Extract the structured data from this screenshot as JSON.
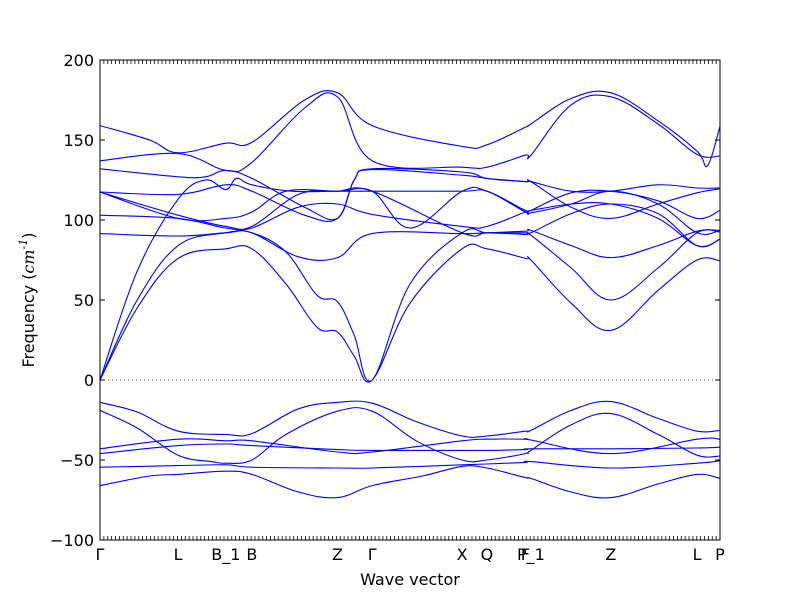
{
  "chart_data": {
    "type": "line",
    "title": "",
    "xlabel": "Wave vector",
    "ylabel": "Frequency ($cm^{-1}$)",
    "ylim": [
      -100,
      200
    ],
    "yticks": [
      -100,
      -50,
      0,
      50,
      100,
      150,
      200
    ],
    "grid": false,
    "legend": "none",
    "line_color": "#0000ff",
    "zero_line": {
      "y": 0,
      "style": "dotted",
      "color": "#555555"
    },
    "kpath": [
      {
        "label": "Γ",
        "dist": 0.0
      },
      {
        "label": "L",
        "dist": 1.26
      },
      {
        "label": "B_1",
        "dist": 2.03
      },
      {
        "label": "B",
        "dist": 2.45
      },
      {
        "label": "Z",
        "dist": 3.83
      },
      {
        "label": "Γ",
        "dist": 4.39
      },
      {
        "label": "X",
        "dist": 5.84
      },
      {
        "label": "Q",
        "dist": 6.24
      },
      {
        "label": "F",
        "dist": 6.86
      },
      {
        "label": "P_1",
        "dist": 6.95
      },
      {
        "label": "Z",
        "dist": 8.24
      },
      {
        "label": "L",
        "dist": 9.63
      },
      {
        "label": "P",
        "dist": 10.0
      }
    ],
    "series": [
      {
        "points": [
          [
            0,
            -66
          ],
          [
            0.8,
            -60
          ],
          [
            1.26,
            -59
          ],
          [
            2.03,
            -57
          ],
          [
            2.45,
            -59
          ],
          [
            3.2,
            -70
          ],
          [
            3.83,
            -73.5
          ],
          [
            4.39,
            -66
          ],
          [
            5.2,
            -60
          ],
          [
            5.84,
            -54
          ],
          [
            6.24,
            -55
          ],
          [
            6.86,
            -61
          ],
          [
            6.95,
            -61.5
          ],
          [
            7.6,
            -70
          ],
          [
            8.24,
            -73.5
          ],
          [
            9.0,
            -65
          ],
          [
            9.63,
            -59
          ],
          [
            10.0,
            -61.5
          ]
        ]
      },
      {
        "points": [
          [
            0,
            -54.5
          ],
          [
            1.26,
            -53.5
          ],
          [
            2.03,
            -53
          ],
          [
            2.45,
            -54.5
          ],
          [
            3.83,
            -55
          ],
          [
            4.39,
            -55
          ],
          [
            5.84,
            -53
          ],
          [
            6.24,
            -52.5
          ],
          [
            6.86,
            -51.5
          ],
          [
            6.95,
            -51
          ],
          [
            8.24,
            -55
          ],
          [
            9.63,
            -52
          ],
          [
            10.0,
            -50.5
          ]
        ]
      },
      {
        "points": [
          [
            0,
            -46
          ],
          [
            1.26,
            -41
          ],
          [
            2.03,
            -40
          ],
          [
            2.45,
            -41
          ],
          [
            3.83,
            -43.5
          ],
          [
            4.39,
            -44
          ],
          [
            5.84,
            -44
          ],
          [
            6.24,
            -44
          ],
          [
            6.86,
            -43.5
          ],
          [
            6.95,
            -43
          ],
          [
            8.24,
            -43
          ],
          [
            9.63,
            -42.5
          ],
          [
            10.0,
            -42
          ]
        ]
      },
      {
        "points": [
          [
            0,
            -43
          ],
          [
            1.26,
            -37
          ],
          [
            2.03,
            -38
          ],
          [
            2.45,
            -38
          ],
          [
            3.83,
            -45
          ],
          [
            4.39,
            -45
          ],
          [
            5.84,
            -38
          ],
          [
            6.24,
            -37
          ],
          [
            6.86,
            -37
          ],
          [
            6.95,
            -37.5
          ],
          [
            8.24,
            -46
          ],
          [
            9.63,
            -37
          ],
          [
            10.0,
            -37
          ]
        ]
      },
      {
        "points": [
          [
            0,
            -19
          ],
          [
            0.6,
            -30
          ],
          [
            1.26,
            -47
          ],
          [
            1.8,
            -51
          ],
          [
            2.03,
            -52
          ],
          [
            2.45,
            -50
          ],
          [
            3.0,
            -34
          ],
          [
            3.83,
            -19.5
          ],
          [
            4.39,
            -19.5
          ],
          [
            5.1,
            -38
          ],
          [
            5.84,
            -50
          ],
          [
            6.24,
            -50
          ],
          [
            6.86,
            -46
          ],
          [
            6.95,
            -44
          ],
          [
            7.6,
            -28
          ],
          [
            8.24,
            -21
          ],
          [
            9.0,
            -34
          ],
          [
            9.63,
            -47
          ],
          [
            10.0,
            -47.5
          ]
        ]
      },
      {
        "points": [
          [
            0,
            -14
          ],
          [
            0.6,
            -20
          ],
          [
            1.26,
            -32
          ],
          [
            2.03,
            -34
          ],
          [
            2.45,
            -33.5
          ],
          [
            3.2,
            -18
          ],
          [
            3.83,
            -14
          ],
          [
            4.39,
            -14.5
          ],
          [
            5.1,
            -26
          ],
          [
            5.84,
            -35
          ],
          [
            6.24,
            -35
          ],
          [
            6.86,
            -32
          ],
          [
            6.95,
            -31.5
          ],
          [
            7.6,
            -19
          ],
          [
            8.24,
            -13.5
          ],
          [
            9.0,
            -24
          ],
          [
            9.63,
            -32
          ],
          [
            10.0,
            -31.5
          ]
        ]
      },
      {
        "points": [
          [
            0,
            0
          ],
          [
            0.6,
            45
          ],
          [
            1.26,
            76
          ],
          [
            2.03,
            82
          ],
          [
            2.45,
            82
          ],
          [
            3.0,
            60
          ],
          [
            3.5,
            33
          ],
          [
            3.83,
            30
          ],
          [
            4.1,
            15
          ],
          [
            4.39,
            0
          ],
          [
            5.0,
            48
          ],
          [
            5.84,
            82
          ],
          [
            6.24,
            82
          ],
          [
            6.86,
            76
          ],
          [
            6.95,
            75
          ],
          [
            7.6,
            48
          ],
          [
            8.24,
            31
          ],
          [
            9.0,
            56
          ],
          [
            9.63,
            75
          ],
          [
            10.0,
            74.5
          ]
        ]
      },
      {
        "points": [
          [
            0,
            0
          ],
          [
            0.6,
            50
          ],
          [
            1.26,
            84
          ],
          [
            2.03,
            92
          ],
          [
            2.45,
            92
          ],
          [
            3.0,
            80
          ],
          [
            3.5,
            53
          ],
          [
            3.83,
            49
          ],
          [
            4.1,
            28
          ],
          [
            4.39,
            0
          ],
          [
            5.0,
            60
          ],
          [
            5.84,
            92
          ],
          [
            6.24,
            92
          ],
          [
            6.86,
            91
          ],
          [
            6.95,
            90.5
          ],
          [
            7.6,
            70
          ],
          [
            8.24,
            50
          ],
          [
            9.0,
            70
          ],
          [
            9.63,
            92
          ],
          [
            10.0,
            92.5
          ]
        ]
      },
      {
        "points": [
          [
            0,
            0
          ],
          [
            0.6,
            68
          ],
          [
            1.26,
            113
          ],
          [
            1.7,
            125
          ],
          [
            2.03,
            119
          ],
          [
            2.2,
            126
          ],
          [
            2.45,
            122
          ],
          [
            3.1,
            118
          ],
          [
            3.83,
            118
          ],
          [
            4.39,
            118
          ],
          [
            5.0,
            95
          ],
          [
            5.84,
            118
          ],
          [
            6.24,
            118
          ],
          [
            6.86,
            105
          ],
          [
            6.95,
            104.5
          ],
          [
            7.6,
            110
          ],
          [
            8.24,
            118
          ],
          [
            9.0,
            110
          ],
          [
            9.63,
            92
          ],
          [
            10.0,
            93.5
          ]
        ]
      },
      {
        "points": [
          [
            0,
            91.5
          ],
          [
            1.26,
            90
          ],
          [
            2.03,
            92
          ],
          [
            2.45,
            92
          ],
          [
            3.2,
            77
          ],
          [
            3.83,
            76.5
          ],
          [
            4.39,
            91.5
          ],
          [
            5.84,
            91.5
          ],
          [
            6.24,
            92
          ],
          [
            6.86,
            93
          ],
          [
            6.95,
            93.5
          ],
          [
            7.6,
            84
          ],
          [
            8.24,
            76.5
          ],
          [
            9.0,
            84
          ],
          [
            9.63,
            93
          ],
          [
            10.0,
            93.5
          ]
        ]
      },
      {
        "points": [
          [
            0,
            103
          ],
          [
            1.26,
            101
          ],
          [
            2.03,
            95
          ],
          [
            2.45,
            95
          ],
          [
            3.2,
            108
          ],
          [
            3.83,
            110
          ],
          [
            4.39,
            103.5
          ],
          [
            5.84,
            96
          ],
          [
            6.24,
            96
          ],
          [
            6.86,
            105
          ],
          [
            6.95,
            106
          ],
          [
            7.6,
            117
          ],
          [
            8.24,
            118
          ],
          [
            9.0,
            112
          ],
          [
            9.63,
            101
          ],
          [
            10.0,
            106
          ]
        ]
      },
      {
        "points": [
          [
            0,
            117.5
          ],
          [
            1.26,
            103
          ],
          [
            2.03,
            96
          ],
          [
            2.45,
            96
          ],
          [
            3.2,
            116
          ],
          [
            3.83,
            118
          ],
          [
            4.39,
            118
          ],
          [
            5.84,
            92
          ],
          [
            6.24,
            92
          ],
          [
            6.86,
            92
          ],
          [
            6.95,
            92
          ],
          [
            7.6,
            104
          ],
          [
            8.24,
            110
          ],
          [
            9.0,
            104
          ],
          [
            9.63,
            84
          ],
          [
            10.0,
            88
          ]
        ]
      },
      {
        "points": [
          [
            0,
            117.5
          ],
          [
            1.26,
            101
          ],
          [
            2.03,
            101
          ],
          [
            2.45,
            105
          ],
          [
            3.0,
            118
          ],
          [
            3.83,
            118
          ],
          [
            4.39,
            118
          ],
          [
            5.84,
            118
          ],
          [
            6.24,
            118
          ],
          [
            6.86,
            106
          ],
          [
            6.95,
            106
          ],
          [
            7.6,
            110
          ],
          [
            8.24,
            110
          ],
          [
            9.0,
            101
          ],
          [
            9.63,
            84
          ],
          [
            10.0,
            88
          ]
        ]
      },
      {
        "points": [
          [
            0,
            117.5
          ],
          [
            1.26,
            116
          ],
          [
            2.03,
            122
          ],
          [
            2.45,
            118
          ],
          [
            3.3,
            103
          ],
          [
            3.83,
            101
          ],
          [
            4.1,
            125
          ],
          [
            4.39,
            131.5
          ],
          [
            5.84,
            128
          ],
          [
            6.24,
            126
          ],
          [
            6.86,
            124
          ],
          [
            6.95,
            124
          ],
          [
            7.6,
            108
          ],
          [
            8.24,
            101
          ],
          [
            9.0,
            110
          ],
          [
            9.63,
            117
          ],
          [
            10.0,
            119.5
          ]
        ]
      },
      {
        "points": [
          [
            0,
            132
          ],
          [
            1.26,
            127
          ],
          [
            1.7,
            127
          ],
          [
            2.03,
            131
          ],
          [
            2.45,
            126
          ],
          [
            3.3,
            108
          ],
          [
            3.83,
            101
          ],
          [
            4.1,
            125
          ],
          [
            4.39,
            132
          ],
          [
            5.84,
            130
          ],
          [
            6.24,
            126
          ],
          [
            6.86,
            124
          ],
          [
            6.95,
            124
          ],
          [
            7.6,
            118
          ],
          [
            8.24,
            118
          ],
          [
            9.0,
            122
          ],
          [
            9.63,
            120
          ],
          [
            10.0,
            120
          ]
        ]
      },
      {
        "points": [
          [
            0,
            137
          ],
          [
            1.26,
            141.5
          ],
          [
            2.03,
            131
          ],
          [
            2.45,
            136
          ],
          [
            3.3,
            170
          ],
          [
            3.83,
            177
          ],
          [
            4.39,
            137
          ],
          [
            5.84,
            133
          ],
          [
            6.24,
            133
          ],
          [
            6.86,
            140.5
          ],
          [
            6.95,
            140.5
          ],
          [
            7.6,
            172
          ],
          [
            8.24,
            177
          ],
          [
            9.0,
            160
          ],
          [
            9.63,
            141
          ],
          [
            10.0,
            140
          ]
        ]
      },
      {
        "points": [
          [
            0,
            159
          ],
          [
            0.8,
            150
          ],
          [
            1.26,
            142
          ],
          [
            2.03,
            148
          ],
          [
            2.45,
            148.5
          ],
          [
            3.3,
            175
          ],
          [
            3.83,
            179.5
          ],
          [
            4.39,
            159
          ],
          [
            5.84,
            146
          ],
          [
            6.24,
            147
          ],
          [
            6.86,
            158
          ],
          [
            6.95,
            160
          ],
          [
            7.6,
            176
          ],
          [
            8.24,
            179.5
          ],
          [
            9.0,
            162
          ],
          [
            9.63,
            143
          ],
          [
            9.8,
            134
          ],
          [
            10.0,
            158.5
          ]
        ]
      }
    ]
  }
}
